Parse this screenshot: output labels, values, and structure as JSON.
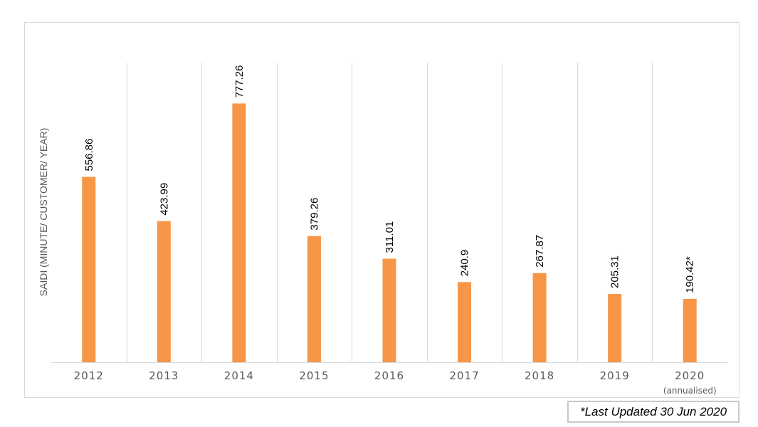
{
  "chart_data": {
    "type": "bar",
    "categories": [
      "2012",
      "2013",
      "2014",
      "2015",
      "2016",
      "2017",
      "2018",
      "2019",
      "2020"
    ],
    "category_sublabels": [
      "",
      "",
      "",
      "",
      "",
      "",
      "",
      "",
      "(annualised)"
    ],
    "values": [
      556.86,
      423.99,
      777.26,
      379.26,
      311.01,
      240.9,
      267.87,
      205.31,
      190.42
    ],
    "data_labels": [
      "556.86",
      "423.99",
      "777.26",
      "379.26",
      "311.01",
      "240.9",
      "267.87",
      "205.31",
      "190.42*"
    ],
    "title": "",
    "xlabel": "",
    "ylabel": "SAIDI (MINUTE/ CUSTOMER/ YEAR)",
    "ylim": [
      0,
      900
    ],
    "grid": "vertical category separators",
    "legend": "none",
    "bar_color": "#f79646"
  },
  "footnote": "*Last Updated 30 Jun 2020"
}
